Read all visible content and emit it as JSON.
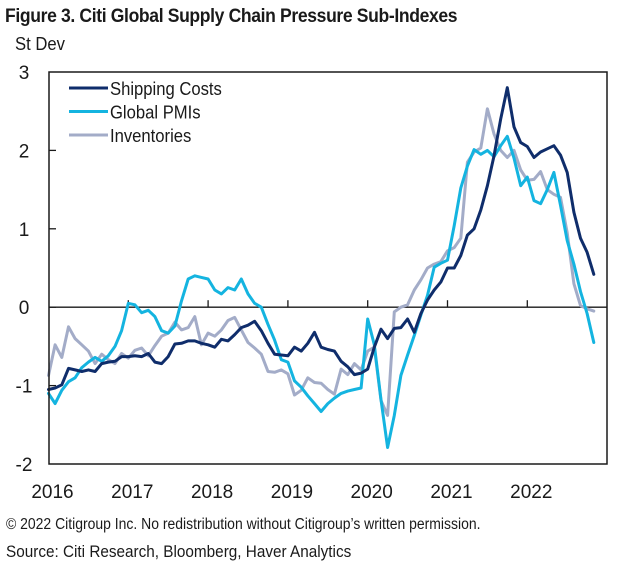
{
  "title": "Figure 3. Citi Global Supply Chain Pressure Sub-Indexes",
  "unit_label": "St Dev",
  "copyright": "© 2022 Citigroup Inc. No redistribution without Citigroup’s written permission.",
  "source": "Source: Citi Research, Bloomberg, Haver Analytics",
  "chart_data": {
    "type": "line",
    "title": "Figure 3. Citi Global Supply Chain Pressure Sub-Indexes",
    "xlabel": "",
    "ylabel": "St Dev",
    "ylim": [
      -2,
      3
    ],
    "yticks": [
      3,
      2,
      1,
      0,
      -1,
      -2
    ],
    "xlim": [
      "2016-01",
      "2023-01"
    ],
    "xticks": [
      "2016",
      "2017",
      "2018",
      "2019",
      "2020",
      "2021",
      "2022"
    ],
    "x_start": "2016-01",
    "x_frequency": "monthly",
    "grid": false,
    "zero_line": true,
    "legend": {
      "position": "top-left"
    },
    "series": [
      {
        "name": "Shipping Costs",
        "color": "#0f2d6b",
        "values": [
          -1.05,
          -1.03,
          -0.99,
          -0.78,
          -0.8,
          -0.82,
          -0.8,
          -0.82,
          -0.72,
          -0.7,
          -0.69,
          -0.63,
          -0.63,
          -0.62,
          -0.63,
          -0.59,
          -0.7,
          -0.72,
          -0.63,
          -0.47,
          -0.46,
          -0.43,
          -0.43,
          -0.46,
          -0.48,
          -0.51,
          -0.41,
          -0.43,
          -0.35,
          -0.26,
          -0.23,
          -0.18,
          -0.3,
          -0.46,
          -0.6,
          -0.61,
          -0.62,
          -0.51,
          -0.56,
          -0.46,
          -0.32,
          -0.51,
          -0.54,
          -0.56,
          -0.69,
          -0.76,
          -0.86,
          -0.84,
          -0.79,
          -0.51,
          -0.28,
          -0.4,
          -0.27,
          -0.26,
          -0.15,
          -0.32,
          -0.08,
          0.09,
          0.22,
          0.32,
          0.5,
          0.5,
          0.66,
          0.92,
          1.0,
          1.24,
          1.55,
          1.93,
          2.4,
          2.8,
          2.3,
          2.1,
          2.05,
          1.91,
          1.98,
          2.02,
          2.06,
          1.94,
          1.72,
          1.21,
          0.88,
          0.7,
          0.42
        ]
      },
      {
        "name": "Global PMIs",
        "color": "#14b4e0",
        "values": [
          -1.1,
          -1.23,
          -1.06,
          -0.95,
          -0.9,
          -0.77,
          -0.7,
          -0.64,
          -0.69,
          -0.62,
          -0.5,
          -0.3,
          0.05,
          0.03,
          -0.07,
          -0.04,
          -0.12,
          -0.3,
          -0.33,
          -0.24,
          0.08,
          0.36,
          0.4,
          0.38,
          0.36,
          0.22,
          0.17,
          0.25,
          0.22,
          0.36,
          0.17,
          0.05,
          0.0,
          -0.22,
          -0.42,
          -0.67,
          -0.7,
          -0.94,
          -1.02,
          -1.13,
          -1.23,
          -1.33,
          -1.23,
          -1.16,
          -1.1,
          -1.07,
          -1.05,
          -1.03,
          -0.15,
          -0.48,
          -1.18,
          -1.79,
          -1.38,
          -0.87,
          -0.61,
          -0.36,
          -0.1,
          0.15,
          0.51,
          0.56,
          0.6,
          1.04,
          1.52,
          1.8,
          2.01,
          1.95,
          2.0,
          1.92,
          2.06,
          2.18,
          1.9,
          1.55,
          1.66,
          1.36,
          1.32,
          1.5,
          1.72,
          1.3,
          0.85,
          0.55,
          0.2,
          -0.08,
          -0.45
        ]
      },
      {
        "name": "Inventories",
        "color": "#a3acc8",
        "values": [
          -0.87,
          -0.48,
          -0.64,
          -0.25,
          -0.4,
          -0.48,
          -0.56,
          -0.72,
          -0.6,
          -0.67,
          -0.72,
          -0.59,
          -0.65,
          -0.55,
          -0.52,
          -0.62,
          -0.49,
          -0.37,
          -0.33,
          -0.19,
          -0.29,
          -0.26,
          -0.12,
          -0.48,
          -0.33,
          -0.37,
          -0.29,
          -0.17,
          -0.13,
          -0.29,
          -0.45,
          -0.52,
          -0.6,
          -0.82,
          -0.83,
          -0.8,
          -0.85,
          -1.12,
          -1.06,
          -0.9,
          -0.96,
          -0.97,
          -1.05,
          -1.11,
          -0.79,
          -0.86,
          -0.72,
          -0.8,
          -0.56,
          -0.51,
          -1.19,
          -1.38,
          -0.06,
          0.0,
          0.03,
          0.22,
          0.35,
          0.5,
          0.55,
          0.58,
          0.72,
          0.76,
          0.88,
          1.85,
          1.98,
          2.03,
          2.53,
          2.21,
          2.0,
          1.91,
          2.0,
          1.75,
          1.62,
          1.63,
          1.73,
          1.5,
          1.44,
          1.4,
          0.95,
          0.3,
          0.02,
          -0.02,
          -0.05
        ]
      }
    ]
  }
}
